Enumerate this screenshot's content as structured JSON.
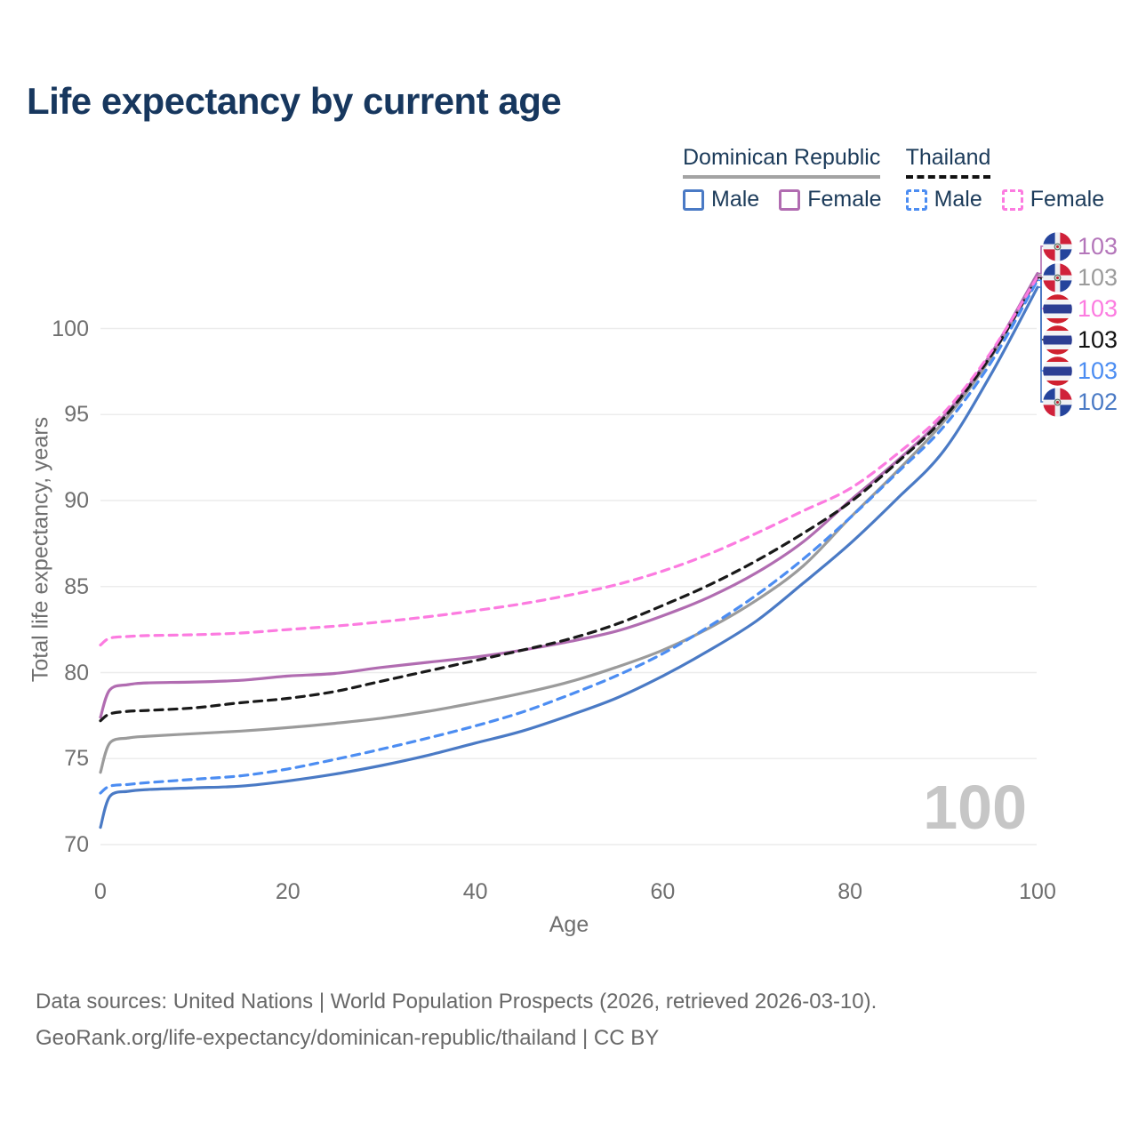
{
  "page": {
    "title": "Life expectancy by current age"
  },
  "legend": {
    "groups": [
      {
        "title": "Dominican Republic",
        "line_style": "solid",
        "line_color": "#a3a3a3",
        "items": [
          {
            "label": "Male",
            "color": "#4a7ac5",
            "dashed": false
          },
          {
            "label": "Female",
            "color": "#b16cb1",
            "dashed": false
          }
        ]
      },
      {
        "title": "Thailand",
        "line_style": "dashed",
        "line_color": "#111111",
        "items": [
          {
            "label": "Male",
            "color": "#4c8df2",
            "dashed": true
          },
          {
            "label": "Female",
            "color": "#fc7be0",
            "dashed": true
          }
        ]
      }
    ]
  },
  "axes": {
    "y_title": "Total life expectancy, years",
    "x_title": "Age"
  },
  "watermark": "100",
  "footer": {
    "line1": "Data sources: United Nations | World Population Prospects (2026, retrieved 2026-03-10).",
    "line2": "GeoRank.org/life-expectancy/dominican-republic/thailand | CC BY"
  },
  "chart_data": {
    "type": "line",
    "title": "Life expectancy by current age",
    "xlabel": "Age",
    "ylabel": "Total life expectancy, years",
    "xlim": [
      0,
      100
    ],
    "ylim": [
      70,
      103.5
    ],
    "x_ticks": [
      0,
      20,
      40,
      60,
      80,
      100
    ],
    "y_ticks": [
      70,
      75,
      80,
      85,
      90,
      95,
      100
    ],
    "grid": "horizontal-only",
    "legend_position": "top-right",
    "x": [
      0,
      1,
      3,
      5,
      10,
      15,
      20,
      25,
      30,
      35,
      40,
      45,
      50,
      55,
      60,
      65,
      70,
      75,
      80,
      85,
      90,
      95,
      100
    ],
    "series": [
      {
        "name": "Dominican Republic Female",
        "country": "Dominican Republic",
        "sex": "Female",
        "color": "#b16cb1",
        "label_color": "#b476ba",
        "dash": "solid",
        "flag": "do",
        "end_label": "103",
        "values": [
          77.4,
          79.0,
          79.3,
          79.4,
          79.45,
          79.55,
          79.8,
          79.95,
          80.3,
          80.6,
          80.9,
          81.3,
          81.8,
          82.4,
          83.3,
          84.4,
          85.8,
          87.6,
          90.0,
          92.3,
          94.9,
          98.5,
          103.2
        ]
      },
      {
        "name": "Dominican Republic Both sexes",
        "country": "Dominican Republic",
        "sex": "Both",
        "color": "#9b9b9b",
        "label_color": "#9b9b9b",
        "dash": "solid",
        "flag": "do",
        "end_label": "103",
        "values": [
          74.2,
          75.9,
          76.2,
          76.3,
          76.45,
          76.6,
          76.8,
          77.05,
          77.35,
          77.75,
          78.25,
          78.8,
          79.45,
          80.3,
          81.3,
          82.6,
          84.2,
          86.2,
          89.0,
          91.7,
          94.6,
          98.3,
          103.1
        ]
      },
      {
        "name": "Thailand Female",
        "country": "Thailand",
        "sex": "Female",
        "color": "#fc7be0",
        "label_color": "#fc7be0",
        "dash": "dashed",
        "flag": "th",
        "end_label": "103",
        "values": [
          81.6,
          82.0,
          82.1,
          82.15,
          82.2,
          82.3,
          82.5,
          82.7,
          82.95,
          83.25,
          83.6,
          84.0,
          84.5,
          85.1,
          85.9,
          86.9,
          88.1,
          89.4,
          90.7,
          92.7,
          95.1,
          98.6,
          103.0
        ]
      },
      {
        "name": "Thailand Both sexes",
        "country": "Thailand",
        "sex": "Both",
        "color": "#191919",
        "label_color": "#111111",
        "dash": "dashed",
        "flag": "th",
        "end_label": "103",
        "values": [
          77.2,
          77.6,
          77.75,
          77.8,
          77.95,
          78.25,
          78.5,
          78.9,
          79.5,
          80.1,
          80.7,
          81.3,
          81.95,
          82.8,
          83.9,
          85.1,
          86.5,
          88.1,
          89.9,
          92.2,
          94.8,
          98.4,
          102.95
        ]
      },
      {
        "name": "Thailand Male",
        "country": "Thailand",
        "sex": "Male",
        "color": "#4c8df2",
        "label_color": "#4c8df2",
        "dash": "dashed",
        "flag": "th",
        "end_label": "103",
        "values": [
          73.0,
          73.4,
          73.5,
          73.6,
          73.8,
          74.0,
          74.4,
          74.95,
          75.55,
          76.2,
          76.9,
          77.7,
          78.7,
          79.8,
          81.1,
          82.7,
          84.5,
          86.6,
          89.0,
          91.6,
          94.3,
          98.0,
          102.8
        ]
      },
      {
        "name": "Dominican Republic Male",
        "country": "Dominican Republic",
        "sex": "Male",
        "color": "#4a7ac5",
        "label_color": "#4a7ac5",
        "dash": "solid",
        "flag": "do",
        "end_label": "102",
        "values": [
          71.0,
          72.8,
          73.1,
          73.2,
          73.3,
          73.4,
          73.7,
          74.1,
          74.6,
          75.2,
          75.9,
          76.6,
          77.5,
          78.5,
          79.8,
          81.3,
          83.0,
          85.2,
          87.5,
          90.1,
          92.9,
          97.3,
          102.4
        ]
      }
    ]
  }
}
